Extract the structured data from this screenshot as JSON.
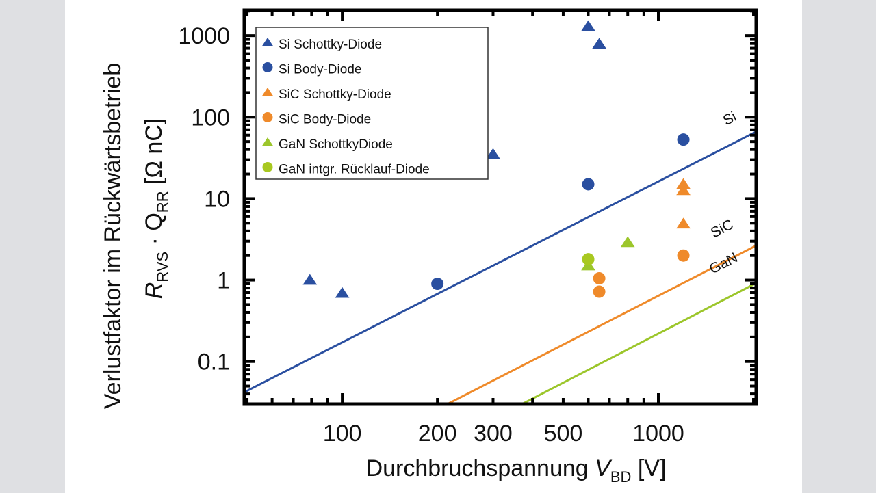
{
  "chart_data": {
    "type": "scatter",
    "title": "",
    "xlabel": {
      "main": "Durchbruchspannung ",
      "var": "V",
      "sub": "BD",
      "unit": " [V]"
    },
    "ylabel": {
      "line1": "Verlustfaktor im Rückwärtsbetrieb",
      "var1": "R",
      "sub1": "RVS",
      "dot": " · ",
      "var2": "Q",
      "sub2": "RR",
      "unit": " [Ω nC]"
    },
    "xscale": "log",
    "yscale": "log",
    "xlim": [
      49,
      2040
    ],
    "ylim": [
      0.03,
      2050
    ],
    "xticks": [
      {
        "v": 100,
        "label": "100"
      },
      {
        "v": 200,
        "label": "200"
      },
      {
        "v": 300,
        "label": "300"
      },
      {
        "v": 500,
        "label": "500"
      },
      {
        "v": 1000,
        "label": "1000"
      }
    ],
    "yticks": [
      {
        "v": 0.1,
        "label": "0.1"
      },
      {
        "v": 1,
        "label": "1"
      },
      {
        "v": 10,
        "label": "10"
      },
      {
        "v": 100,
        "label": "100"
      },
      {
        "v": 1000,
        "label": "1000"
      }
    ],
    "grid": false,
    "legend_position": "top-left",
    "series": [
      {
        "name": "Si Schottky-Diode",
        "marker": "triangle",
        "color": "#2a4fa0",
        "points": [
          [
            79,
            1.0
          ],
          [
            100,
            0.69
          ],
          [
            300,
            35
          ],
          [
            600,
            1300
          ],
          [
            650,
            790
          ]
        ]
      },
      {
        "name": "Si Body-Diode",
        "marker": "circle",
        "color": "#2a4fa0",
        "points": [
          [
            200,
            0.9
          ],
          [
            600,
            15
          ],
          [
            1200,
            53
          ]
        ]
      },
      {
        "name": "SiC Schottky-Diode",
        "marker": "triangle",
        "color": "#ef8a2a",
        "points": [
          [
            1200,
            15
          ],
          [
            1200,
            12.6
          ],
          [
            1200,
            4.9
          ]
        ]
      },
      {
        "name": "SiC Body-Diode",
        "marker": "circle",
        "color": "#ef8a2a",
        "points": [
          [
            1200,
            2.0
          ],
          [
            650,
            1.05
          ],
          [
            650,
            0.72
          ]
        ]
      },
      {
        "name": "GaN SchottkyDiode",
        "marker": "triangle",
        "color": "#9cc62b",
        "points": [
          [
            800,
            2.9
          ],
          [
            600,
            1.5
          ]
        ]
      },
      {
        "name": "GaN intgr. Rücklauf-Diode",
        "marker": "circle",
        "color": "#a8c820",
        "points": [
          [
            600,
            1.8
          ]
        ]
      }
    ],
    "limit_lines": [
      {
        "name": "Si",
        "label": "Si",
        "color": "#2a4fa0",
        "points": [
          [
            49,
            0.042
          ],
          [
            2020,
            65
          ]
        ]
      },
      {
        "name": "SiC",
        "label": "SiC",
        "color": "#ef8a2a",
        "points": [
          [
            215,
            0.03
          ],
          [
            2020,
            2.6
          ]
        ]
      },
      {
        "name": "GaN",
        "label": "GaN",
        "color": "#9cc62b",
        "points": [
          [
            370,
            0.03
          ],
          [
            2020,
            0.9
          ]
        ]
      }
    ]
  }
}
